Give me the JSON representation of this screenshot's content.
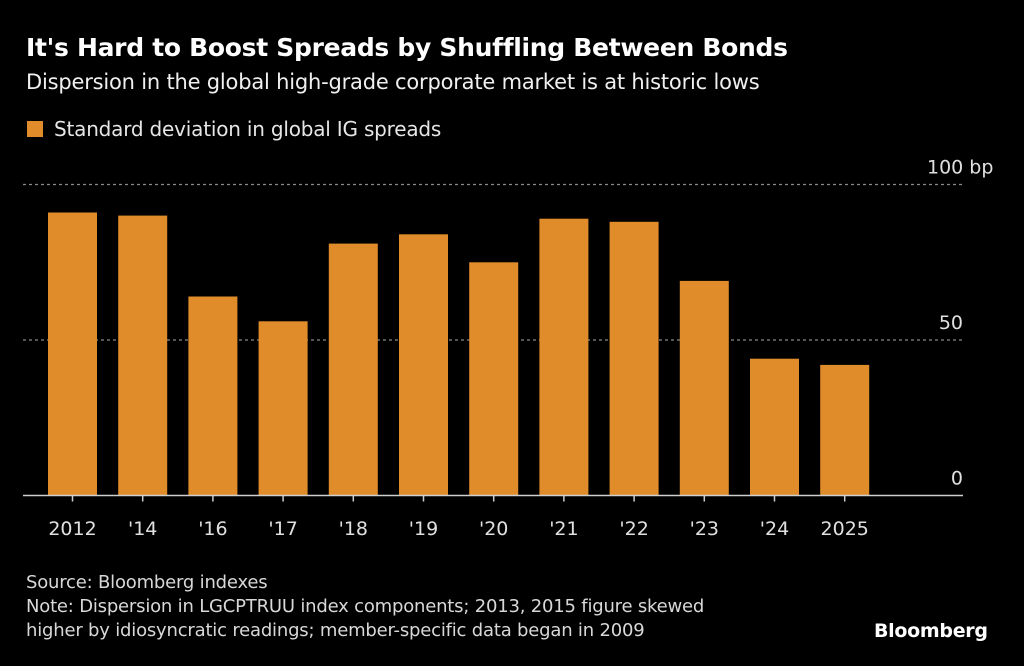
{
  "header": {
    "title": "It's Hard to Boost Spreads by Shuffling Between Bonds",
    "subtitle": "Dispersion in the global high-grade corporate market is at historic lows"
  },
  "legend": {
    "label": "Standard deviation in global IG spreads",
    "color": "#E08C2A"
  },
  "chart_data": {
    "type": "bar",
    "title": "It's Hard to Boost Spreads by Shuffling Between Bonds",
    "subtitle": "Dispersion in the global high-grade corporate market is at historic lows",
    "categories": [
      "2012",
      "'14",
      "'16",
      "'17",
      "'18",
      "'19",
      "'20",
      "'21",
      "'22",
      "'23",
      "'24",
      "2025"
    ],
    "series": [
      {
        "name": "Standard deviation in global IG spreads",
        "color": "#E08C2A",
        "values": [
          91,
          90,
          64,
          56,
          81,
          84,
          75,
          89,
          88,
          69,
          44,
          42
        ]
      }
    ],
    "xlabel": "",
    "ylabel": "bp",
    "ylim": [
      0,
      100
    ],
    "yticks": [
      {
        "value": 0,
        "label": "0"
      },
      {
        "value": 50,
        "label": "50"
      },
      {
        "value": 100,
        "label": "100 bp"
      }
    ],
    "grid": true,
    "grid_style": "dotted",
    "yaxis_position": "right",
    "legend_position": "top-left"
  },
  "footer": {
    "source": "Source: Bloomberg indexes",
    "note_line1": "Note: Dispersion in LGCPTRUU index components; 2013, 2015 figure skewed",
    "note_line2": "higher by idiosyncratic readings; member-specific data began in 2009",
    "brand": "Bloomberg"
  },
  "colors": {
    "background": "#000000",
    "bar": "#E08C2A",
    "text": "#FFFFFF",
    "grid": "#8A8A8A",
    "axis": "#CFCFCF"
  }
}
